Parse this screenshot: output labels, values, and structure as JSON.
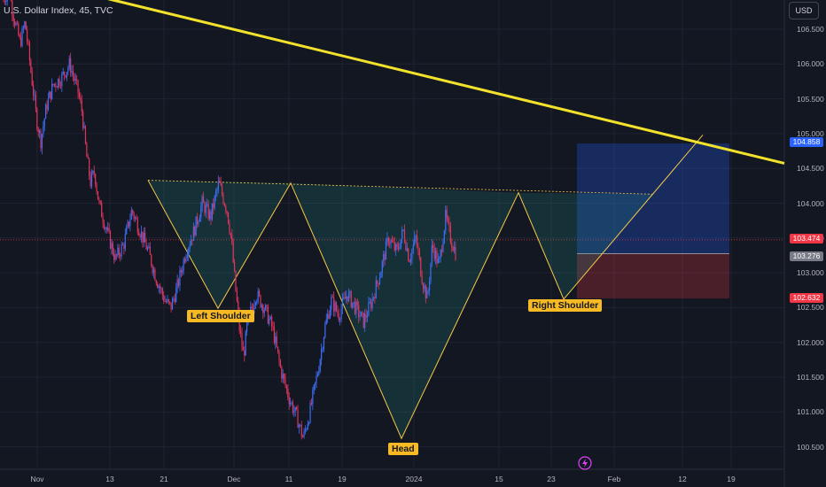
{
  "window": {
    "title": "U.S. Dollar Index, 45, TVC",
    "currency_button": "USD"
  },
  "chart_data": {
    "type": "candlestick",
    "instrument": "U.S. Dollar Index",
    "interval": "45",
    "source": "TVC",
    "currency": "USD",
    "ylim": [
      100.3,
      107.3
    ],
    "y_ticks": [
      "106.500",
      "106.000",
      "105.500",
      "105.000",
      "104.500",
      "104.000",
      "103.500",
      "103.000",
      "102.500",
      "102.000",
      "101.500",
      "101.000",
      "100.500"
    ],
    "x_ticks": [
      "Nov",
      "13",
      "21",
      "Dec",
      "11",
      "19",
      "2024",
      "15",
      "23",
      "Feb",
      "12",
      "19"
    ],
    "price_levels": {
      "current": "103.474",
      "entry": "103.276",
      "target": "104.858",
      "stop": "102.632"
    },
    "pattern_labels": {
      "left_shoulder": "Left Shoulder",
      "head": "Head",
      "right_shoulder": "Right Shoulder"
    },
    "pattern_points": [
      {
        "date": "Nov 16",
        "price": 104.33
      },
      {
        "date": "Nov 27",
        "price": 102.49
      },
      {
        "date": "Dec 12",
        "price": 104.29
      },
      {
        "date": "Dec 28",
        "price": 100.62
      },
      {
        "date": "Jan 18",
        "price": 104.15
      },
      {
        "date": "Jan 26",
        "price": 102.62
      }
    ],
    "trend_line": {
      "start_price": 107.2,
      "end_price": 104.7
    },
    "series_path": [
      [
        0,
        106.9
      ],
      [
        0.6,
        107.1
      ],
      [
        1.2,
        106.7
      ],
      [
        2,
        106.3
      ],
      [
        2.6,
        106.6
      ],
      [
        3.2,
        106.0
      ],
      [
        4,
        105.2
      ],
      [
        4.5,
        104.9
      ],
      [
        5.2,
        105.4
      ],
      [
        6,
        105.7
      ],
      [
        7,
        105.8
      ],
      [
        8,
        106.0
      ],
      [
        9,
        105.6
      ],
      [
        9.5,
        105.3
      ],
      [
        10,
        104.7
      ],
      [
        10.5,
        104.3
      ],
      [
        11,
        104.45
      ],
      [
        11.5,
        104.0
      ],
      [
        12.5,
        103.6
      ],
      [
        13.5,
        103.2
      ],
      [
        14.5,
        103.4
      ],
      [
        15.5,
        103.9
      ],
      [
        16.5,
        103.6
      ],
      [
        17.5,
        103.3
      ],
      [
        18.5,
        102.9
      ],
      [
        19.5,
        102.6
      ],
      [
        20.2,
        102.5
      ],
      [
        21,
        102.8
      ],
      [
        22,
        103.3
      ],
      [
        23,
        103.6
      ],
      [
        24,
        104.0
      ],
      [
        25,
        103.8
      ],
      [
        26,
        104.29
      ],
      [
        27,
        103.9
      ],
      [
        27.5,
        103.5
      ],
      [
        28,
        102.8
      ],
      [
        28.5,
        102.2
      ],
      [
        29,
        101.8
      ],
      [
        29.5,
        102.3
      ],
      [
        30.5,
        102.7
      ],
      [
        31.5,
        102.5
      ],
      [
        32.5,
        102.2
      ],
      [
        33.5,
        101.6
      ],
      [
        34.5,
        101.2
      ],
      [
        35.5,
        100.9
      ],
      [
        36.2,
        100.62
      ],
      [
        37,
        101.0
      ],
      [
        38,
        101.6
      ],
      [
        38.8,
        102.2
      ],
      [
        39.6,
        102.6
      ],
      [
        40.5,
        102.4
      ],
      [
        41.5,
        102.7
      ],
      [
        42.5,
        102.5
      ],
      [
        43.5,
        102.3
      ],
      [
        44.5,
        102.6
      ],
      [
        45.5,
        103.0
      ],
      [
        46.5,
        103.5
      ],
      [
        47.5,
        103.3
      ],
      [
        48.3,
        103.6
      ],
      [
        49,
        103.2
      ],
      [
        49.8,
        103.5
      ],
      [
        50.6,
        102.9
      ],
      [
        51.2,
        102.62
      ],
      [
        51.8,
        103.4
      ],
      [
        52.6,
        103.1
      ],
      [
        53.4,
        103.8
      ],
      [
        54,
        103.5
      ],
      [
        54.6,
        103.3
      ]
    ]
  }
}
